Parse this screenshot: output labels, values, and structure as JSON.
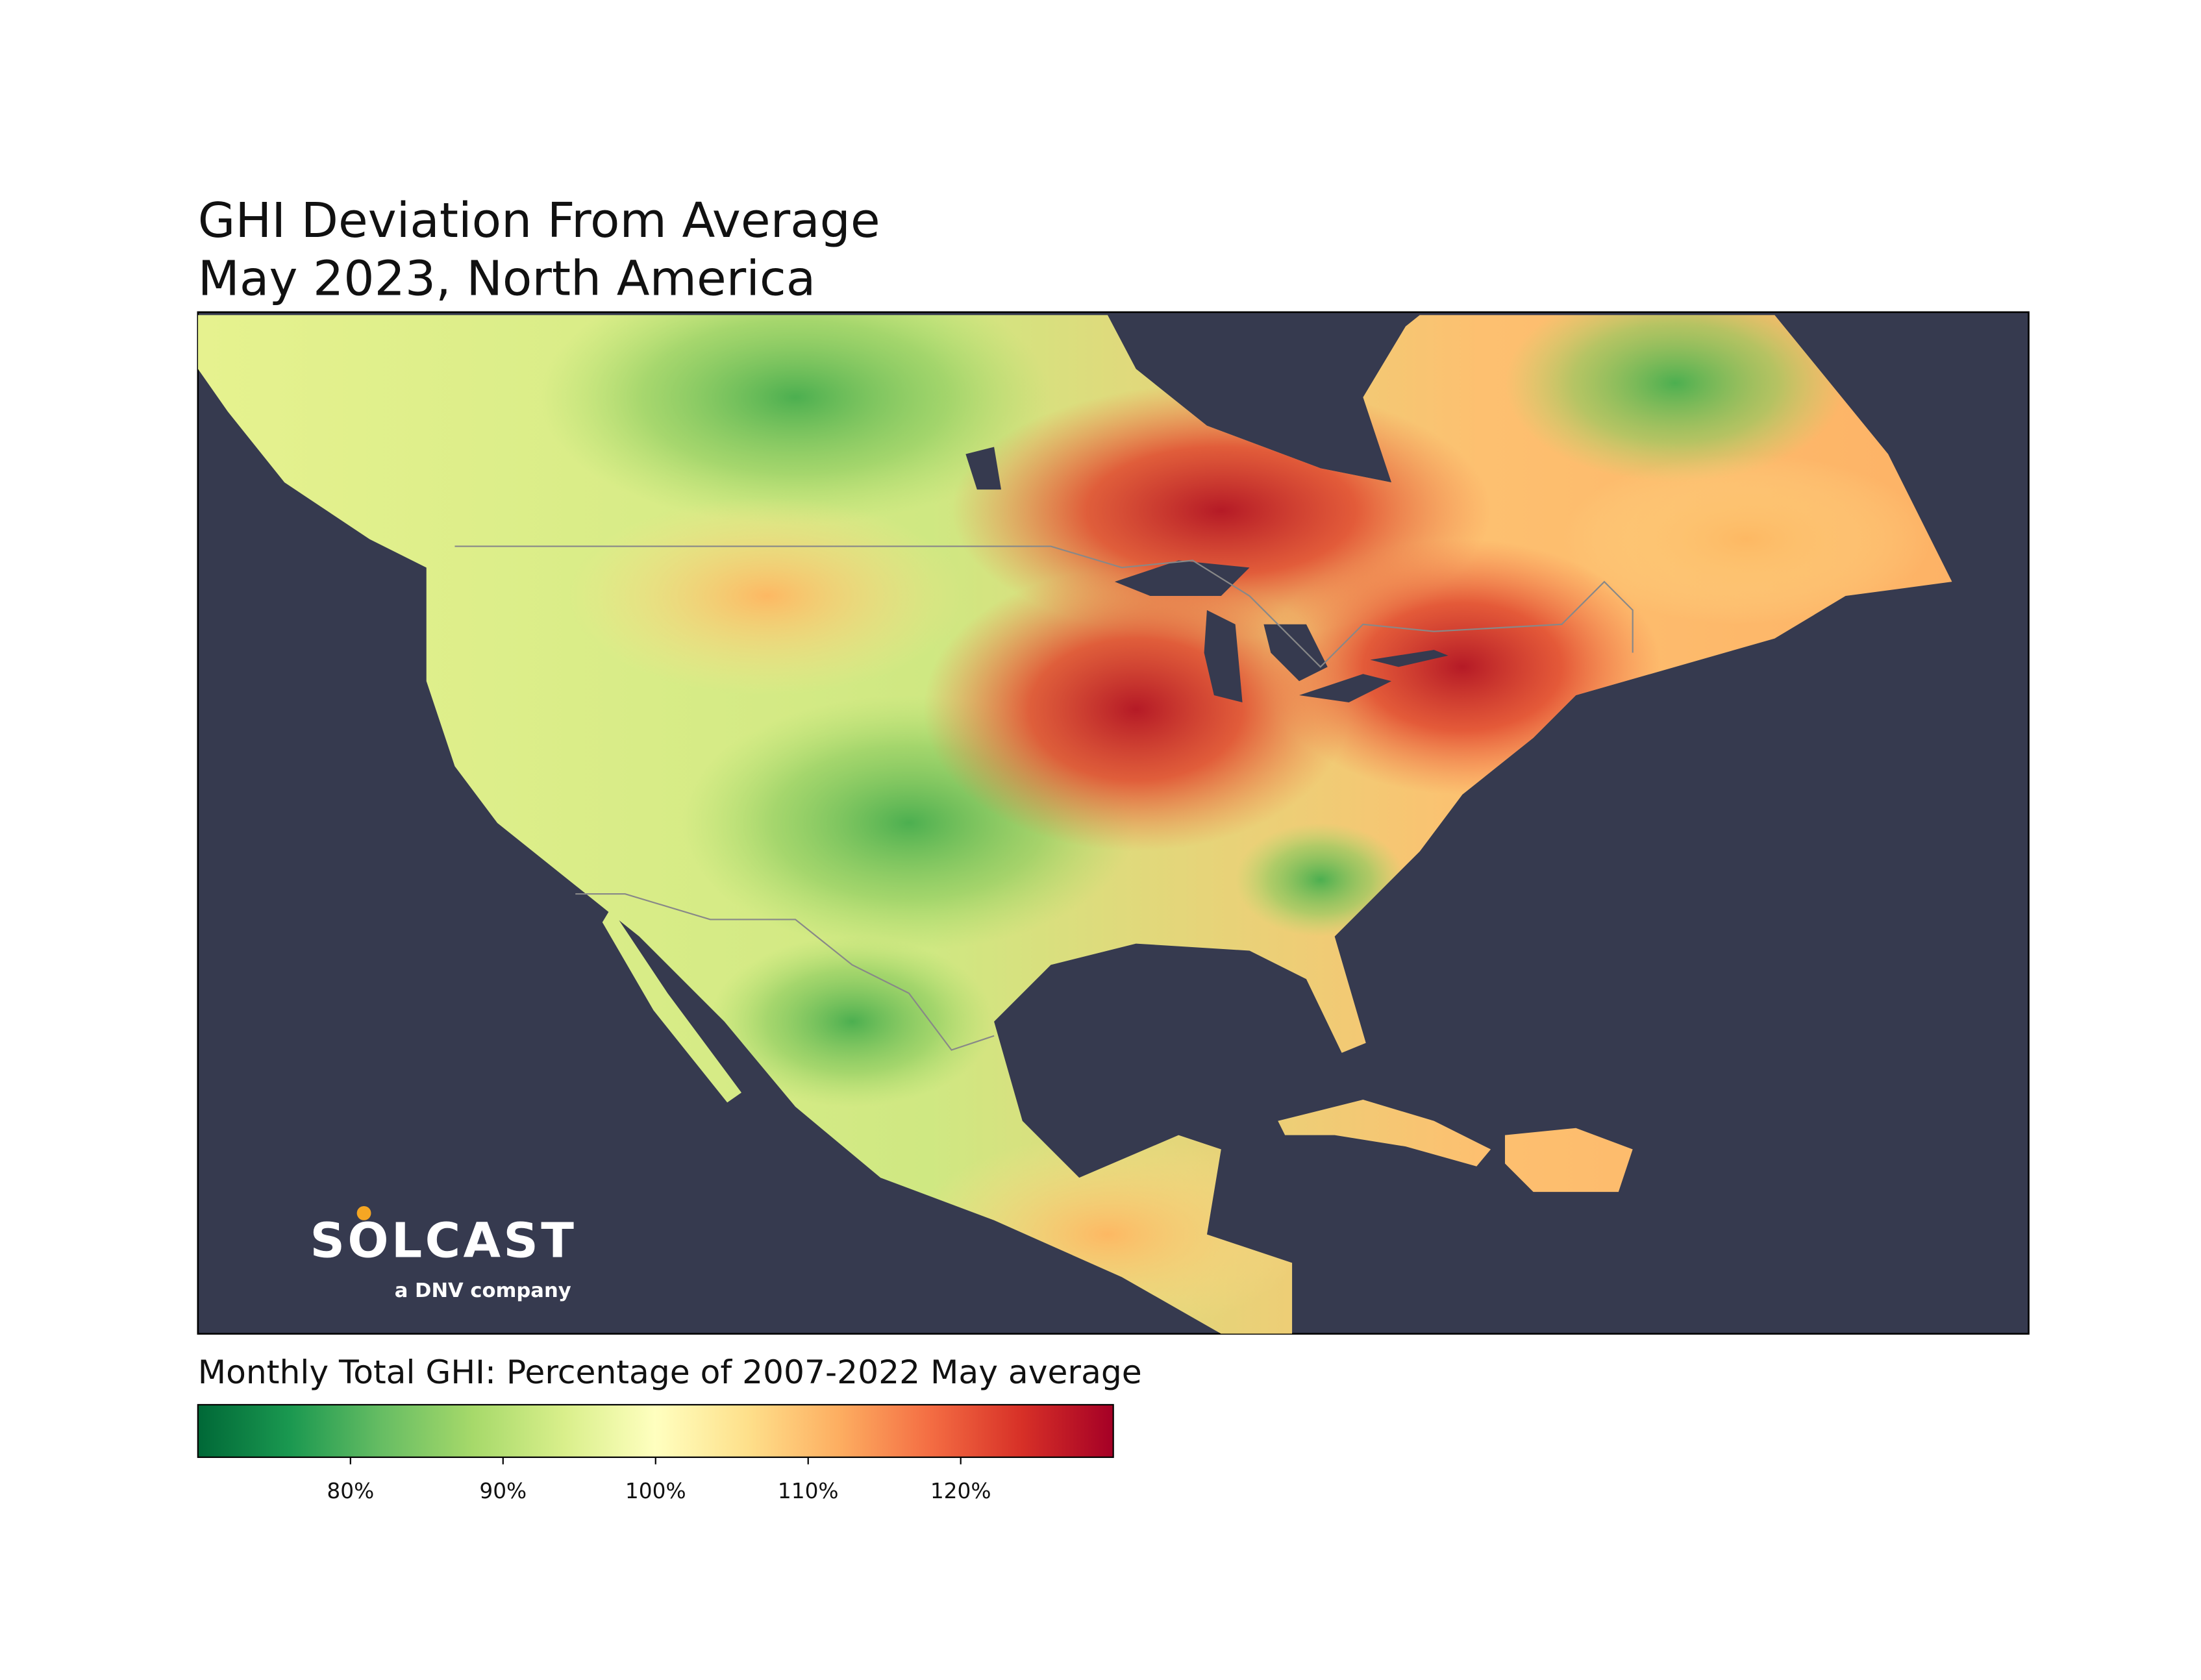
{
  "title_lines": [
    "GHI Deviation From Average",
    "May 2023, North America"
  ],
  "logo": {
    "name": "SOLCAST",
    "tagline": "a DNV company"
  },
  "colorbar": {
    "label": "Monthly Total GHI: Percentage of 2007-2022 May average",
    "lim": [
      70,
      130
    ],
    "ticks": [
      {
        "value": 80,
        "label": "80%"
      },
      {
        "value": 90,
        "label": "90%"
      },
      {
        "value": 100,
        "label": "100%"
      },
      {
        "value": 110,
        "label": "110%"
      },
      {
        "value": 120,
        "label": "120%"
      }
    ],
    "colors": [
      "#006837",
      "#1a9850",
      "#66bd63",
      "#a6d96a",
      "#d9ef8b",
      "#ffffbf",
      "#fee08b",
      "#fdae61",
      "#f46d43",
      "#d73027",
      "#a50026"
    ]
  }
}
